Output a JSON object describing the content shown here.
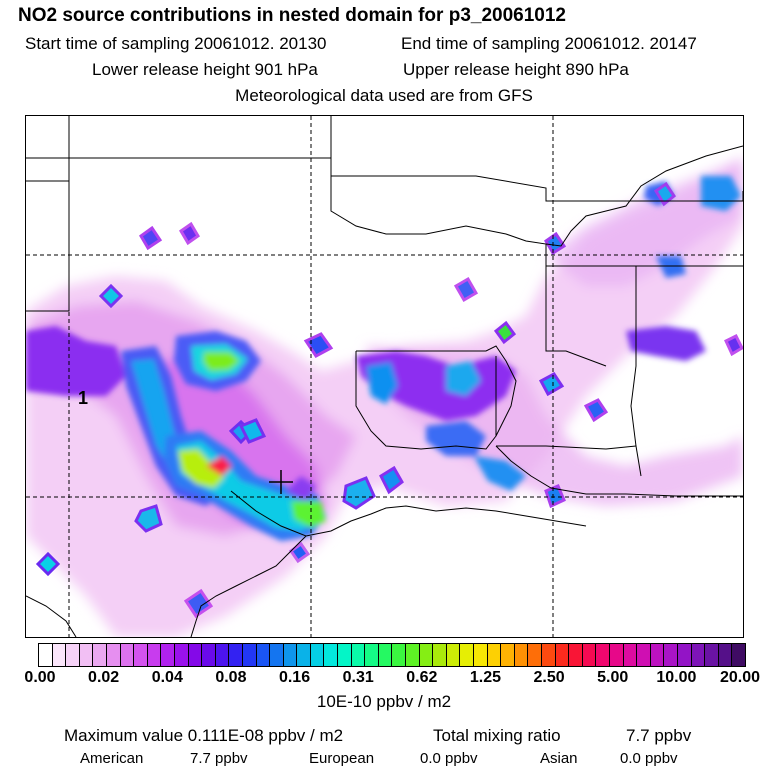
{
  "header": {
    "title": "NO2 source contributions in nested domain for p3_20061012",
    "start_label": "Start time of sampling 20061012. 20130",
    "end_label": "End time of sampling 20061012. 20147",
    "lower_label": "Lower release height  901 hPa",
    "upper_label": "Upper release height  890 hPa",
    "met_label": "Meteorological data used are from GFS"
  },
  "scale": {
    "ticks": [
      "0.00",
      "0.02",
      "0.04",
      "0.08",
      "0.16",
      "0.31",
      "0.62",
      "1.25",
      "2.50",
      "5.00",
      "10.00",
      "20.00"
    ],
    "units": "10E-10 ppbv / m2",
    "colors": [
      "#ffffff",
      "#fbe6fb",
      "#f6d2f7",
      "#f2bff4",
      "#eba8f1",
      "#e68ff0",
      "#dd72ee",
      "#d453ee",
      "#c83cee",
      "#b122ee",
      "#9a12ec",
      "#8409e8",
      "#6a0aea",
      "#4d14ee",
      "#3322f2",
      "#2237f4",
      "#1a55f4",
      "#1475f0",
      "#0f95ec",
      "#0ab2e8",
      "#05cfe4",
      "#03e8dd",
      "#04f5c7",
      "#0afaa9",
      "#15fb86",
      "#25f962",
      "#3bf640",
      "#5ef225",
      "#85ee14",
      "#aaea0b",
      "#ccec06",
      "#e6ee04",
      "#f7e704",
      "#fdd003",
      "#feb203",
      "#fe9104",
      "#fe6e08",
      "#fd4a10",
      "#fc2b1e",
      "#f91536",
      "#f50a52",
      "#f0076e",
      "#e70889",
      "#dd0ba0",
      "#cf0fb2",
      "#bd12c0",
      "#a914c6",
      "#9314c6",
      "#7e14b8",
      "#6a13a4",
      "#551089",
      "#3f0b63"
    ]
  },
  "stats": {
    "max_label": "Maximum value  0.111E-08 ppbv / m2",
    "total_label": "Total mixing ratio",
    "total_value": "7.7 ppbv"
  },
  "contributions": [
    {
      "name": "American",
      "value": "7.7 ppbv"
    },
    {
      "name": "European",
      "value": "0.0 ppbv"
    },
    {
      "name": "Asian",
      "value": "0.0 ppbv"
    }
  ],
  "map": {
    "source_marker": "1"
  }
}
